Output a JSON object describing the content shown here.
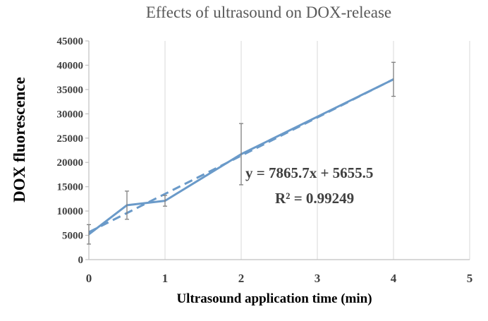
{
  "chart_data": {
    "type": "scatter",
    "title": "Effects of ultrasound on DOX-release",
    "xlabel": "Ultrasound application time (min)",
    "ylabel": "DOX fluorescence",
    "xlim": [
      0,
      5
    ],
    "ylim": [
      0,
      45000
    ],
    "x_ticks": [
      "0",
      "1",
      "2",
      "3",
      "4",
      "5"
    ],
    "y_ticks": [
      "0",
      "5000",
      "10000",
      "15000",
      "20000",
      "25000",
      "30000",
      "35000",
      "40000",
      "45000"
    ],
    "grid": "vertical",
    "series": [
      {
        "name": "DOX fluorescence",
        "line": "solid",
        "x": [
          0,
          0.5,
          1,
          2,
          4
        ],
        "y": [
          5200,
          11200,
          12100,
          21700,
          37100
        ],
        "error": [
          2000,
          2900,
          1100,
          6300,
          3500
        ]
      }
    ],
    "trendline": {
      "type": "linear",
      "line": "dashed",
      "slope": 7865.7,
      "intercept": 5655.5,
      "x_range": [
        0,
        4
      ],
      "equation": "y = 7865.7x + 5655.5",
      "r_squared": "R² = 0.99249"
    },
    "colors": {
      "series": "#6a9ac9",
      "axis": "#c0c0c0",
      "grid": "#d9d9d9",
      "error_bar": "#7f7f7f"
    }
  }
}
